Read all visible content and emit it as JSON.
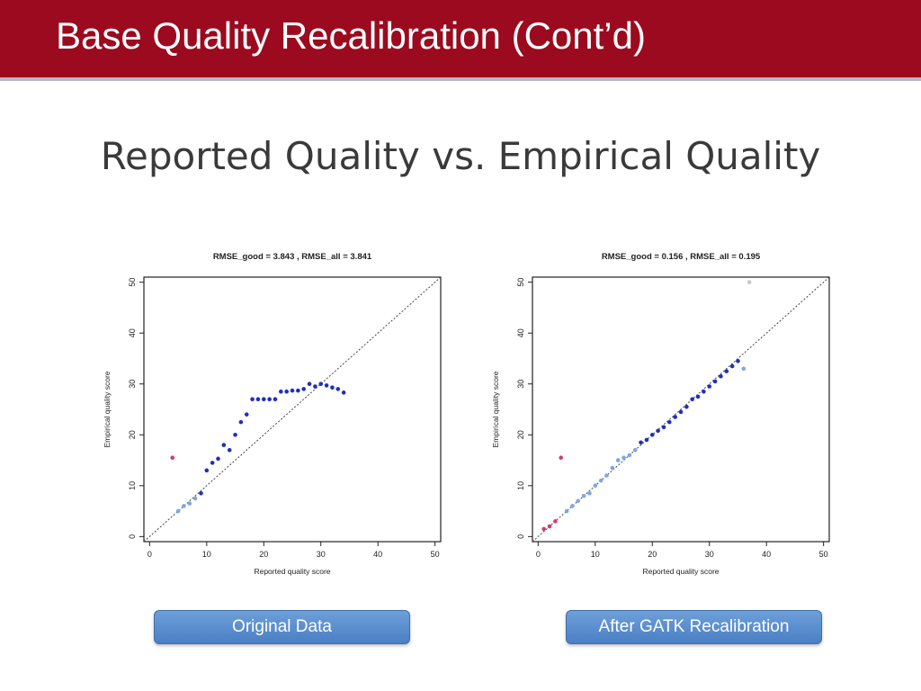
{
  "header": {
    "title": "Base Quality Recalibration (Cont’d)"
  },
  "subtitle": "Reported Quality vs. Empirical Quality",
  "captions": {
    "original": "Original Data",
    "recalibrated": "After GATK Recalibration"
  },
  "colors": {
    "header_bg": "#9b0a1e",
    "good": "#1f2fbf",
    "poor": "#7fa6e6",
    "outlier": "#d23c6e",
    "button": "#5b8fd0"
  },
  "chart_data": [
    {
      "type": "scatter",
      "title": "RMSE_good = 3.843 , RMSE_all = 3.841",
      "xlabel": "Reported quality score",
      "ylabel": "Empirical quality score",
      "xlim": [
        -1,
        51
      ],
      "ylim": [
        -1,
        51
      ],
      "xticks": [
        "0",
        "10",
        "20",
        "30",
        "40",
        "50"
      ],
      "yticks": [
        "0",
        "10",
        "20",
        "30",
        "40",
        "50"
      ],
      "reference_line": "y = x, dashed",
      "legend": "none",
      "series": [
        {
          "kind": "good",
          "color": "#1f2fbf",
          "points": [
            [
              9,
              8.5
            ],
            [
              10,
              13
            ],
            [
              11,
              14.5
            ],
            [
              12,
              15.3
            ],
            [
              13,
              18
            ],
            [
              14,
              17
            ],
            [
              15,
              20
            ],
            [
              16,
              22.5
            ],
            [
              17,
              24
            ],
            [
              18,
              27
            ],
            [
              19,
              27
            ],
            [
              20,
              27
            ],
            [
              21,
              27
            ],
            [
              22,
              27
            ],
            [
              23,
              28.5
            ],
            [
              24,
              28.5
            ],
            [
              25,
              28.7
            ],
            [
              26,
              28.7
            ],
            [
              27,
              29
            ],
            [
              28,
              30
            ],
            [
              29,
              29.5
            ],
            [
              30,
              30
            ],
            [
              31,
              29.7
            ],
            [
              32,
              29.3
            ],
            [
              33,
              29
            ],
            [
              34,
              28.3
            ]
          ]
        },
        {
          "kind": "poor",
          "color": "#7fa6e6",
          "points": [
            [
              5,
              5
            ],
            [
              6,
              6
            ],
            [
              7,
              6.5
            ],
            [
              8,
              7.5
            ]
          ]
        },
        {
          "kind": "outlier",
          "color": "#d23c6e",
          "points": [
            [
              4,
              15.5
            ]
          ]
        }
      ]
    },
    {
      "type": "scatter",
      "title": "RMSE_good = 0.156 , RMSE_all = 0.195",
      "xlabel": "Reported quality score",
      "ylabel": "Empirical quality score",
      "xlim": [
        -1,
        51
      ],
      "ylim": [
        -1,
        51
      ],
      "xticks": [
        "0",
        "10",
        "20",
        "30",
        "40",
        "50"
      ],
      "yticks": [
        "0",
        "10",
        "20",
        "30",
        "40",
        "50"
      ],
      "reference_line": "y = x, dashed",
      "legend": "none",
      "series": [
        {
          "kind": "good",
          "color": "#1f2fbf",
          "points": [
            [
              18,
              18.5
            ],
            [
              19,
              19
            ],
            [
              20,
              20
            ],
            [
              21,
              20.8
            ],
            [
              22,
              21.5
            ],
            [
              23,
              22.5
            ],
            [
              24,
              23.5
            ],
            [
              25,
              24.5
            ],
            [
              26,
              25.5
            ],
            [
              27,
              27
            ],
            [
              28,
              27.5
            ],
            [
              29,
              28.5
            ],
            [
              30,
              29.5
            ],
            [
              31,
              30.5
            ],
            [
              32,
              31.5
            ],
            [
              33,
              32.5
            ],
            [
              34,
              33.5
            ],
            [
              35,
              34.5
            ]
          ]
        },
        {
          "kind": "poor",
          "color": "#7fa6e6",
          "points": [
            [
              5,
              5
            ],
            [
              6,
              6
            ],
            [
              7,
              7
            ],
            [
              8,
              8
            ],
            [
              9,
              8.5
            ],
            [
              10,
              10
            ],
            [
              11,
              11
            ],
            [
              12,
              12
            ],
            [
              13,
              13.5
            ],
            [
              14,
              15
            ],
            [
              15,
              15.5
            ],
            [
              16,
              16
            ],
            [
              17,
              17
            ],
            [
              36,
              33
            ]
          ]
        },
        {
          "kind": "faint",
          "color": "#c8c8c8",
          "points": [
            [
              37,
              50
            ]
          ]
        },
        {
          "kind": "outlier",
          "color": "#d23c6e",
          "points": [
            [
              1,
              1.5
            ],
            [
              2,
              2
            ],
            [
              3,
              3
            ],
            [
              4,
              15.5
            ]
          ]
        }
      ]
    }
  ]
}
